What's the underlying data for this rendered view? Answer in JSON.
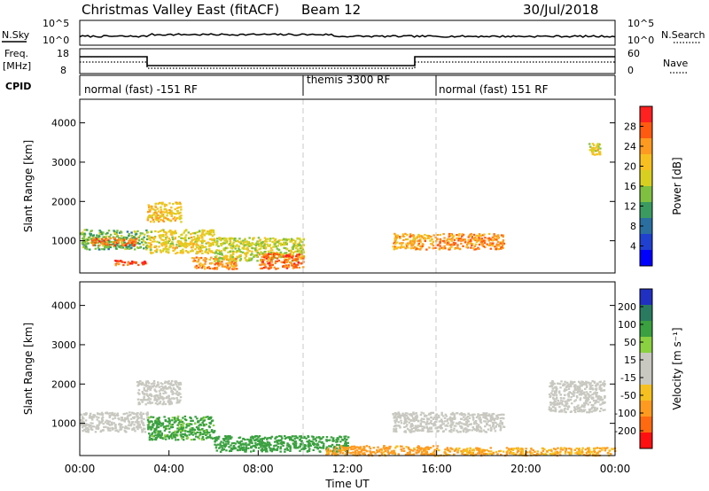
{
  "header": {
    "title": "Christmas Valley East (fitACF)",
    "beam": "Beam 12",
    "date": "30/Jul/2018"
  },
  "noise_panel": {
    "left_label": "N.Sky",
    "right_label": "N.Search",
    "left_ticks": [
      "10^5",
      "10^0"
    ],
    "right_ticks": [
      "10^5",
      "10^0"
    ]
  },
  "freq_panel": {
    "left_label_1": "Freq.",
    "left_label_2": "[MHz]",
    "left_ticks": [
      "18",
      "8"
    ],
    "right_label": "Nave",
    "right_ticks": [
      "60",
      "0"
    ]
  },
  "cpid": {
    "label": "CPID",
    "segments": [
      {
        "start": 0,
        "end": 10,
        "text": "normal (fast) -151 RF"
      },
      {
        "start": 10,
        "end": 16,
        "text": "themis 3300 RF"
      },
      {
        "start": 16,
        "end": 24,
        "text": "normal (fast) 151 RF"
      }
    ]
  },
  "chart_data": [
    {
      "type": "heatmap",
      "name": "power",
      "ylabel": "Slant Range [km]",
      "xlim_hours": [
        0,
        24
      ],
      "ylim_km": [
        180,
        4600
      ],
      "yticks": [
        "1000",
        "2000",
        "3000",
        "4000"
      ],
      "colorbar": {
        "label": "Power [dB]",
        "ticks": [
          "28",
          "24",
          "20",
          "16",
          "12",
          "8",
          "4"
        ],
        "colors": [
          "#ff2020",
          "#ff5a10",
          "#ff9a20",
          "#f7c020",
          "#d8d020",
          "#7fc040",
          "#3a9a60",
          "#2a6fa0",
          "#2040d0",
          "#0000ff"
        ]
      },
      "features": [
        {
          "t0": 0.0,
          "t1": 3.0,
          "r0": 800,
          "r1": 1300,
          "level": 12
        },
        {
          "t0": 0.5,
          "t1": 2.5,
          "r0": 900,
          "r1": 1100,
          "level": 26
        },
        {
          "t0": 1.5,
          "t1": 3.0,
          "r0": 400,
          "r1": 520,
          "level": 28
        },
        {
          "t0": 3.0,
          "t1": 4.5,
          "r0": 1500,
          "r1": 2000,
          "level": 20
        },
        {
          "t0": 3.0,
          "t1": 6.0,
          "r0": 700,
          "r1": 1300,
          "level": 18
        },
        {
          "t0": 5.0,
          "t1": 7.0,
          "r0": 300,
          "r1": 600,
          "level": 24
        },
        {
          "t0": 6.0,
          "t1": 10.0,
          "r0": 500,
          "r1": 1100,
          "level": 16
        },
        {
          "t0": 8.0,
          "t1": 10.0,
          "r0": 300,
          "r1": 700,
          "level": 26
        },
        {
          "t0": 14.0,
          "t1": 16.0,
          "r0": 800,
          "r1": 1200,
          "level": 22
        },
        {
          "t0": 16.0,
          "t1": 19.0,
          "r0": 800,
          "r1": 1200,
          "level": 24
        },
        {
          "t0": 22.8,
          "t1": 23.3,
          "r0": 3200,
          "r1": 3500,
          "level": 18
        }
      ]
    },
    {
      "type": "heatmap",
      "name": "velocity",
      "xlabel": "Time UT",
      "ylabel": "Slant Range [km]",
      "xlim_hours": [
        0,
        24
      ],
      "ylim_km": [
        180,
        4600
      ],
      "xticks": [
        "00:00",
        "04:00",
        "08:00",
        "12:00",
        "16:00",
        "20:00",
        "00:00"
      ],
      "yticks": [
        "1000",
        "2000",
        "3000",
        "4000"
      ],
      "colorbar": {
        "label": "Velocity [m s⁻¹]",
        "ticks": [
          "200",
          "100",
          "50",
          "15",
          "-15",
          "-50",
          "-100",
          "-200"
        ],
        "colors": [
          "#2030c0",
          "#2a7a60",
          "#3aa040",
          "#8ad040",
          "#c8c8c0",
          "#c8c8c0",
          "#f5c020",
          "#ff9a20",
          "#ff6a10",
          "#ff1010"
        ]
      },
      "features": [
        {
          "t0": 0.0,
          "t1": 3.0,
          "r0": 800,
          "r1": 1300,
          "velocity": 0
        },
        {
          "t0": 2.5,
          "t1": 4.5,
          "r0": 1500,
          "r1": 2100,
          "velocity": 0
        },
        {
          "t0": 3.0,
          "t1": 6.0,
          "r0": 600,
          "r1": 1200,
          "velocity": 60
        },
        {
          "t0": 6.0,
          "t1": 12.0,
          "r0": 300,
          "r1": 700,
          "velocity": 70
        },
        {
          "t0": 11.0,
          "t1": 16.0,
          "r0": 200,
          "r1": 450,
          "velocity": -60
        },
        {
          "t0": 14.0,
          "t1": 19.0,
          "r0": 800,
          "r1": 1300,
          "velocity": 0
        },
        {
          "t0": 16.0,
          "t1": 24.0,
          "r0": 200,
          "r1": 400,
          "velocity": -50
        },
        {
          "t0": 21.0,
          "t1": 23.5,
          "r0": 1300,
          "r1": 2100,
          "velocity": 0
        }
      ]
    }
  ]
}
